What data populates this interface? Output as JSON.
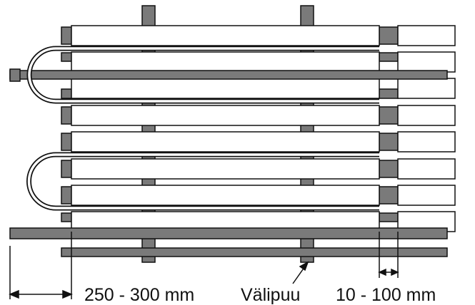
{
  "labels": {
    "spacing": "250 - 300 mm",
    "spacer": "Välipuu",
    "gap": "10 - 100 mm"
  },
  "colors": {
    "board_fill": "#ffffff",
    "board_stroke": "#111111",
    "pipe_fill": "#7a7a7a",
    "block_fill": "#7a7a7a",
    "line": "#111111",
    "background": "#ffffff"
  }
}
